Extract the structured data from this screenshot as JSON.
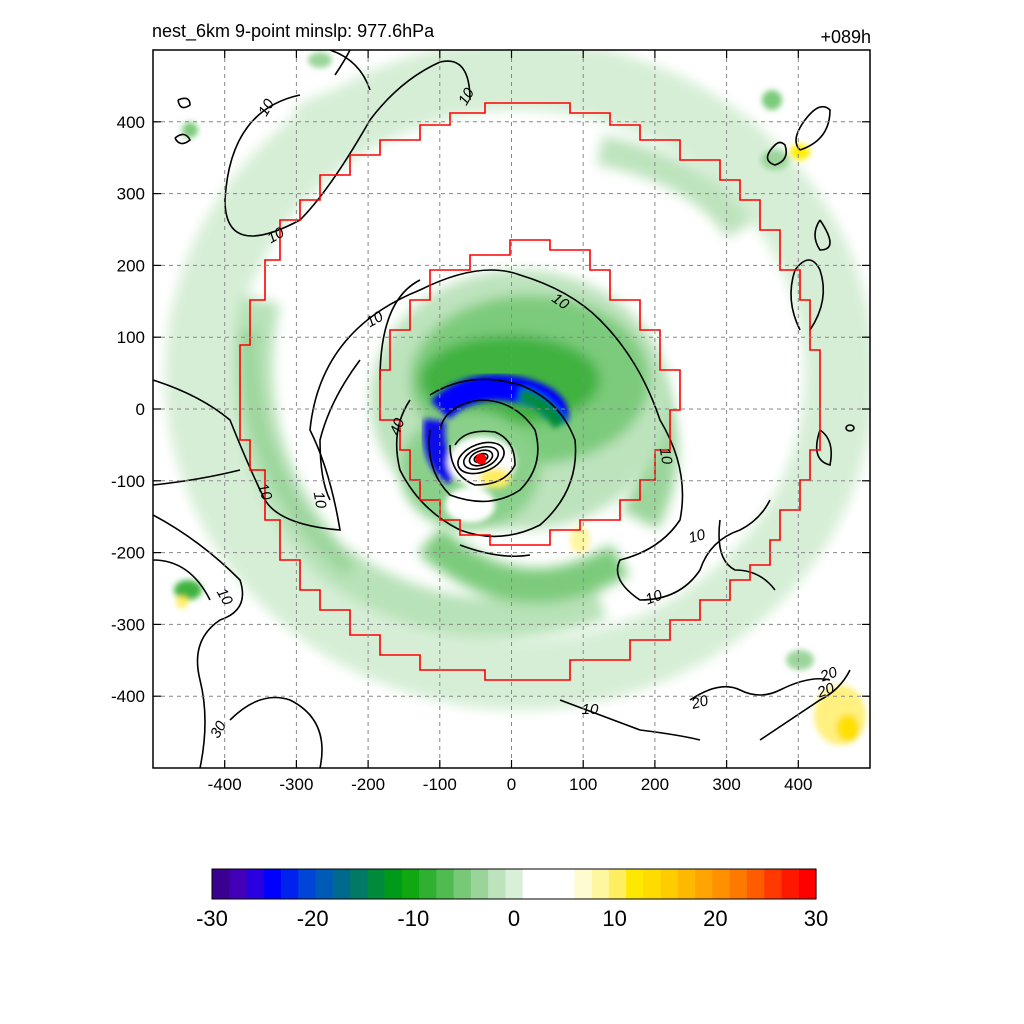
{
  "chart_data": {
    "type": "heatmap",
    "title": "nest_6km  9-point minslp: 977.6hPa",
    "forecast_hour": "+089h",
    "xlim": [
      -500,
      500
    ],
    "ylim": [
      -500,
      500
    ],
    "x_ticks": [
      -400,
      -300,
      -200,
      -100,
      0,
      100,
      200,
      300,
      400
    ],
    "y_ticks": [
      400,
      300,
      200,
      100,
      0,
      -100,
      -200,
      -300,
      -400
    ],
    "x_tick_labels": [
      "-400",
      "-300",
      "-200",
      "-100",
      "0",
      "100",
      "200",
      "300",
      "400"
    ],
    "y_tick_labels": [
      "400",
      "300",
      "200",
      "100",
      "0",
      "-100",
      "-200",
      "-300",
      "-400"
    ],
    "grid": true,
    "colorbar": {
      "range": [
        -30,
        30
      ],
      "ticks": [
        "-30",
        "-20",
        "-10",
        "0",
        "10",
        "20",
        "30"
      ],
      "colors": [
        "#3a008f",
        "#4400b8",
        "#2a00e0",
        "#0000ff",
        "#0022ee",
        "#0044d8",
        "#005ab8",
        "#006a8e",
        "#007a66",
        "#008a3a",
        "#009a1a",
        "#10a810",
        "#30b030",
        "#50bb50",
        "#78c878",
        "#9ad49a",
        "#bde3bd",
        "#d8efd8",
        "#ffffff",
        "#ffffff",
        "#ffffff",
        "#fffbd0",
        "#fff6a0",
        "#ffef60",
        "#ffe800",
        "#ffdc00",
        "#ffcc00",
        "#ffb800",
        "#ffa400",
        "#ff9000",
        "#ff7800",
        "#ff5c00",
        "#ff3a00",
        "#ff1800",
        "#ff0000"
      ]
    },
    "contour_labels": [
      "10",
      "10",
      "10",
      "10",
      "10",
      "10",
      "10",
      "10",
      "10",
      "10",
      "10",
      "10",
      "20",
      "20",
      "20",
      "30",
      "40"
    ],
    "storm_center": {
      "x": -45,
      "y": -70
    }
  }
}
